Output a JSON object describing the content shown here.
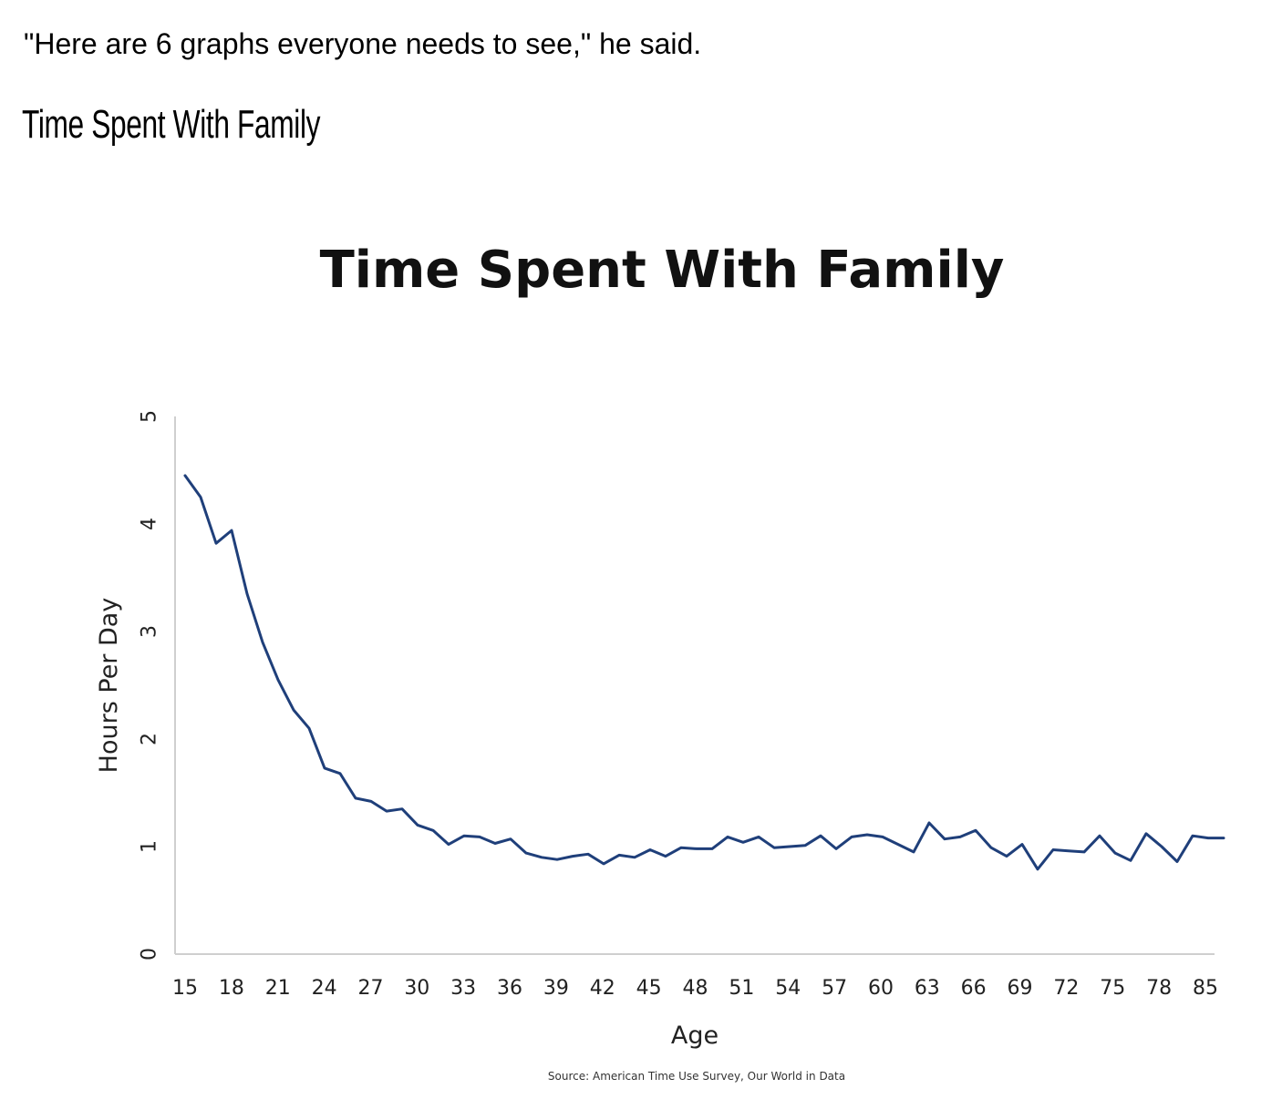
{
  "article": {
    "quote": "\"Here are 6 graphs everyone needs to see,\" he said.",
    "section_heading": "Time Spent With Family"
  },
  "chart_data": {
    "type": "line",
    "title": "Time Spent With Family",
    "xlabel": "Age",
    "ylabel": "Hours Per Day",
    "source": "Source: American Time Use Survey, Our World in Data",
    "xlim": [
      15,
      85
    ],
    "ylim": [
      0,
      5
    ],
    "x_ticks": [
      "15",
      "18",
      "21",
      "24",
      "27",
      "30",
      "33",
      "36",
      "39",
      "42",
      "45",
      "48",
      "51",
      "54",
      "57",
      "60",
      "63",
      "66",
      "69",
      "72",
      "75",
      "78",
      "85"
    ],
    "y_ticks": [
      0,
      1,
      2,
      3,
      4,
      5
    ],
    "grid": false,
    "line_color": "#1f3f7a",
    "series": [
      {
        "x": [
          15,
          16,
          17,
          18,
          19,
          20,
          21,
          22,
          23,
          24,
          25,
          26,
          27,
          28,
          29,
          30,
          31,
          32,
          33,
          34,
          35,
          36,
          37,
          38,
          39,
          40,
          41,
          42,
          43,
          44,
          45,
          46,
          47,
          48,
          49,
          50,
          51,
          52,
          53,
          54,
          55,
          56,
          57,
          58,
          59,
          60,
          61,
          62,
          63,
          64,
          65,
          66,
          67,
          68,
          69,
          70,
          71,
          72,
          73,
          74,
          75,
          76,
          77,
          78,
          79,
          80,
          81,
          82
        ],
        "y": [
          4.45,
          4.25,
          3.82,
          3.94,
          3.35,
          2.9,
          2.55,
          2.27,
          2.1,
          1.73,
          1.68,
          1.45,
          1.42,
          1.33,
          1.35,
          1.2,
          1.15,
          1.02,
          1.1,
          1.09,
          1.03,
          1.07,
          0.94,
          0.9,
          0.88,
          0.91,
          0.93,
          0.84,
          0.92,
          0.9,
          0.97,
          0.91,
          0.99,
          0.98,
          0.98,
          1.09,
          1.04,
          1.09,
          0.99,
          1.0,
          1.01,
          1.1,
          0.98,
          1.09,
          1.11,
          1.09,
          1.02,
          0.95,
          1.22,
          1.07,
          1.09,
          1.15,
          0.99,
          0.91,
          1.02,
          0.79,
          0.97,
          0.96,
          0.95,
          1.1,
          0.94,
          0.87,
          1.12,
          1.0,
          0.86,
          1.1,
          1.08,
          1.08
        ]
      }
    ]
  }
}
